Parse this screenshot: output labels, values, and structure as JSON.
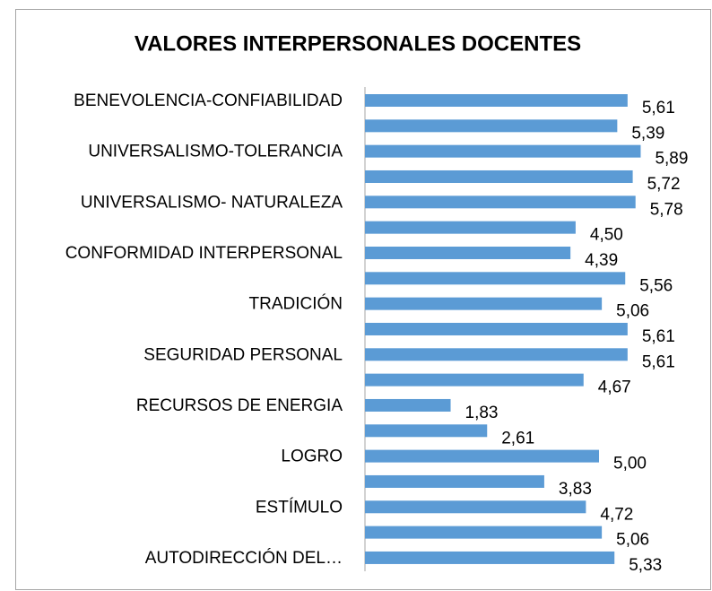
{
  "chart_data": {
    "type": "bar",
    "orientation": "horizontal",
    "title": "VALORES INTERPERSONALES DOCENTES",
    "categories": [
      "BENEVOLENCIA-CONFIABILIDAD",
      null,
      "UNIVERSALISMO-TOLERANCIA",
      null,
      "UNIVERSALISMO- NATURALEZA ",
      null,
      "CONFORMIDAD INTERPERSONAL",
      null,
      "TRADICIÓN",
      null,
      "SEGURIDAD PERSONAL",
      null,
      "RECURSOS DE ENERGIA",
      null,
      "LOGRO",
      null,
      "ESTÍMULO",
      null,
      "AUTODIRECCIÓN DEL…"
    ],
    "values": [
      5.61,
      5.39,
      5.89,
      5.72,
      5.78,
      4.5,
      4.39,
      5.56,
      5.06,
      5.61,
      5.61,
      4.67,
      1.83,
      2.61,
      5.0,
      3.83,
      4.72,
      5.06,
      5.33
    ],
    "value_labels": [
      "5,61",
      "5,39",
      "5,89",
      "5,72",
      "5,78",
      "4,50",
      "4,39",
      "5,56",
      "5,06",
      "5,61",
      "5,61",
      "4,67",
      "1,83",
      "2,61",
      "5,00",
      "3,83",
      "4,72",
      "5,06",
      "5,33"
    ],
    "color": "#5b9bd5"
  }
}
